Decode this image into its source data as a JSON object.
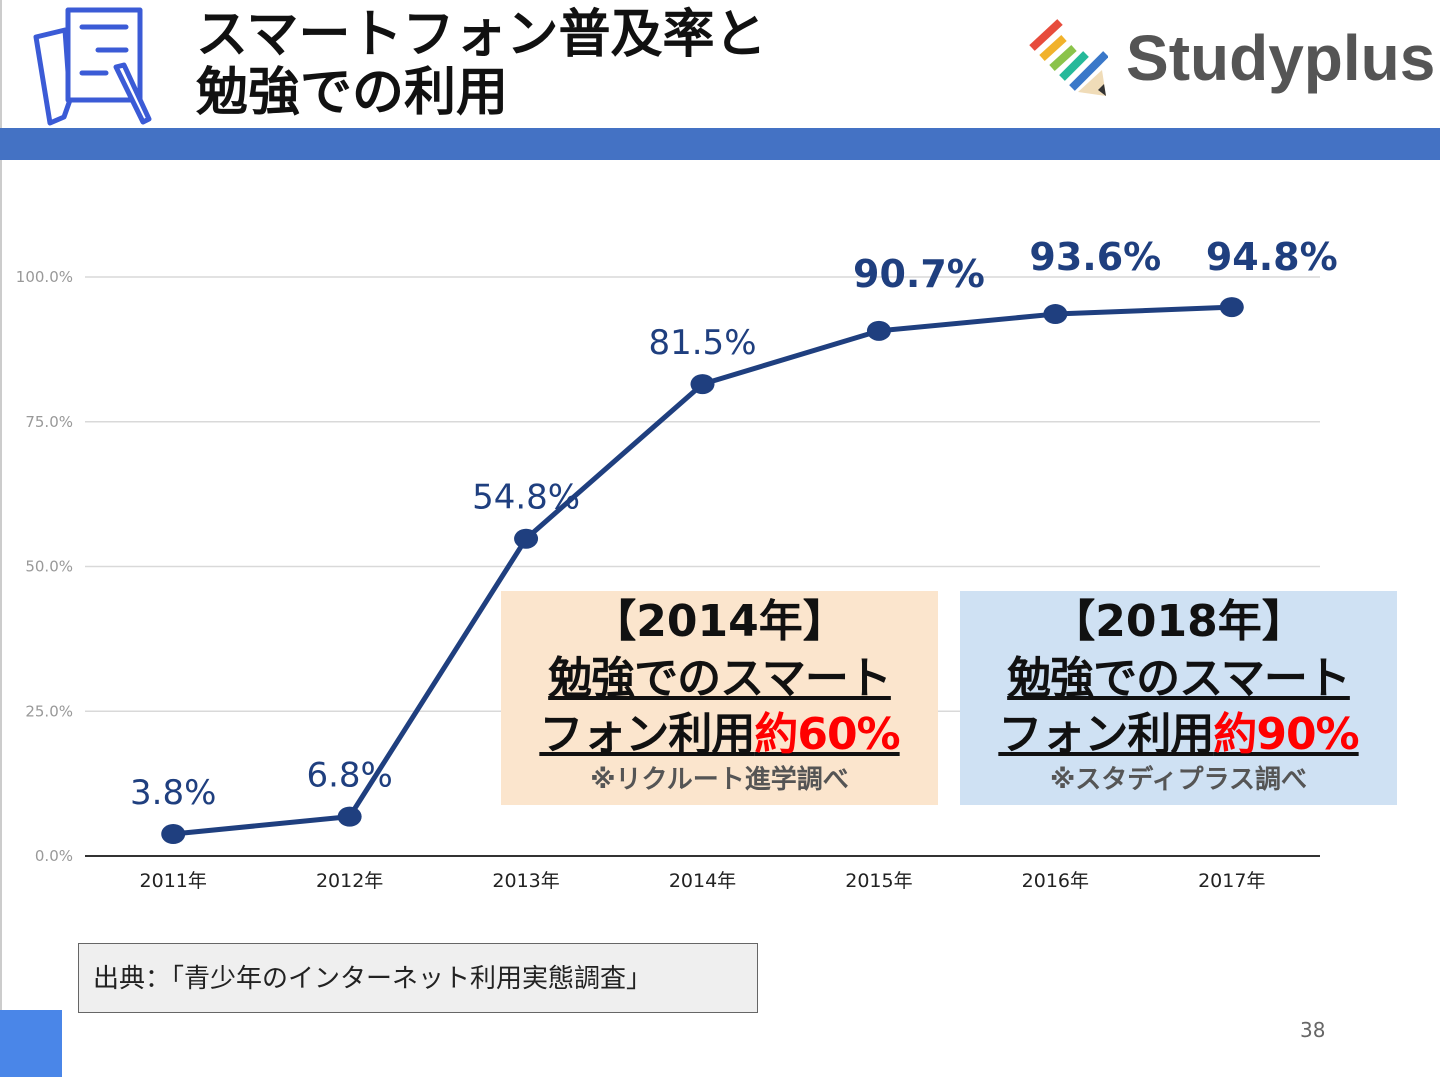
{
  "header": {
    "title_line1": "スマートフォン普及率と",
    "title_line2": "勉強での利用",
    "logo_text": "Studyplus"
  },
  "chart_data": {
    "type": "line",
    "categories": [
      "2011年",
      "2012年",
      "2013年",
      "2014年",
      "2015年",
      "2016年",
      "2017年"
    ],
    "values": [
      3.8,
      6.8,
      54.8,
      81.5,
      90.7,
      93.6,
      94.8
    ],
    "data_labels": [
      "3.8%",
      "6.8%",
      "54.8%",
      "81.5%",
      "90.7%",
      "93.6%",
      "94.8%"
    ],
    "ylim": [
      0,
      100
    ],
    "yticks": [
      "0.0%",
      "25.0%",
      "50.0%",
      "75.0%",
      "100.0%"
    ],
    "ytick_values": [
      0,
      25,
      50,
      75,
      100
    ],
    "grid": true,
    "color": "#1f3f7f"
  },
  "box2014": {
    "year": "【2014年】",
    "line1": "勉強でのスマート",
    "line2a": "フォン利用",
    "line2b": "約60%",
    "note": "※リクルート進学調べ"
  },
  "box2018": {
    "year": "【2018年】",
    "line1": "勉強でのスマート",
    "line2a": "フォン利用",
    "line2b": "約90%",
    "note": "※スタディプラス調べ"
  },
  "source": "出典：「青少年のインターネット利用実態調査」",
  "page_number": "38"
}
